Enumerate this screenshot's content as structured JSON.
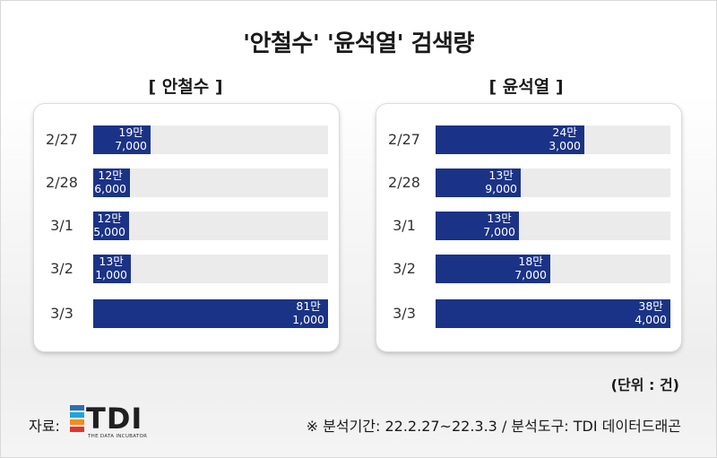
{
  "title": "'안철수' '윤석열' 검색량",
  "unit": "(단위 : 건)",
  "source": {
    "label": "자료:",
    "logo_text": "TDI",
    "logo_subtitle": "THE DATA INCUBATOR",
    "logo_colors": [
      "#2e6db4",
      "#1aa9d6",
      "#f28c1f",
      "#e2342b",
      "#e8e8e8"
    ],
    "note": "※ 분석기간: 22.2.27~22.3.3  / 분석도구: TDI 데이터드래곤"
  },
  "colors": {
    "bar": "#1b3386",
    "track": "#ebebeb"
  },
  "chart_data": [
    {
      "type": "bar",
      "orientation": "horizontal",
      "title": "[ 안철수 ]",
      "categories": [
        "2/27",
        "2/28",
        "3/1",
        "3/2",
        "3/3"
      ],
      "values": [
        197000,
        126000,
        125000,
        131000,
        811000
      ],
      "value_labels": [
        [
          "19만",
          "7,000"
        ],
        [
          "12만",
          "6,000"
        ],
        [
          "12만",
          "5,000"
        ],
        [
          "13만",
          "1,000"
        ],
        [
          "81만",
          "1,000"
        ]
      ],
      "xlim": [
        0,
        811000
      ],
      "unit": "건"
    },
    {
      "type": "bar",
      "orientation": "horizontal",
      "title": "[ 윤석열 ]",
      "categories": [
        "2/27",
        "2/28",
        "3/1",
        "3/2",
        "3/3"
      ],
      "values": [
        243000,
        139000,
        137000,
        187000,
        384000
      ],
      "value_labels": [
        [
          "24만",
          "3,000"
        ],
        [
          "13만",
          "9,000"
        ],
        [
          "13만",
          "7,000"
        ],
        [
          "18만",
          "7,000"
        ],
        [
          "38만",
          "4,000"
        ]
      ],
      "xlim": [
        0,
        384000
      ],
      "unit": "건"
    }
  ]
}
